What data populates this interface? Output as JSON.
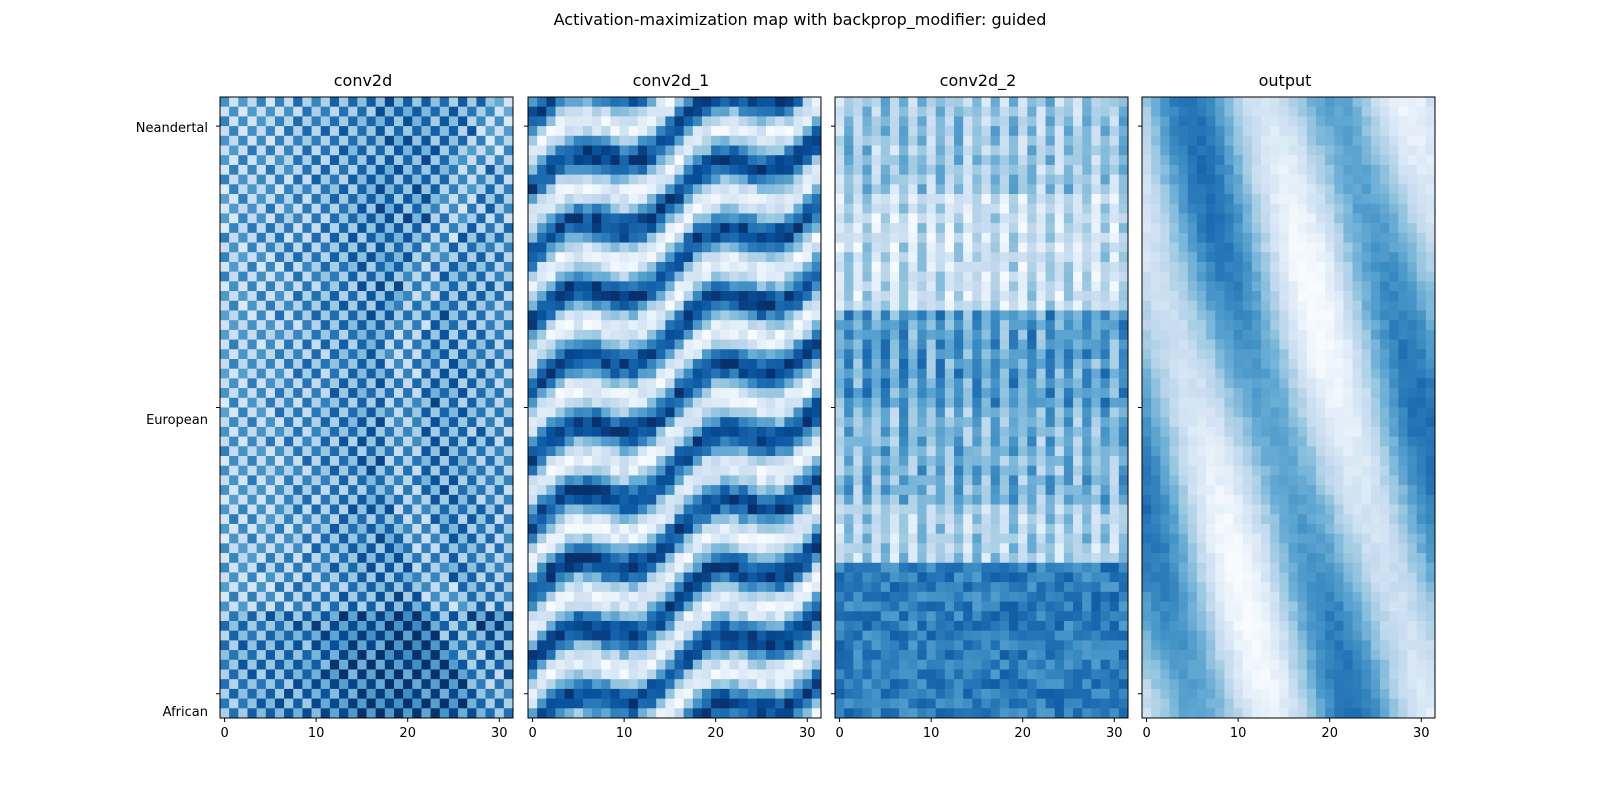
{
  "figure": {
    "title": "Activation-maximization map with backprop_modifier: guided",
    "colormap": "Blues"
  },
  "chart_data": {
    "type": "heatmap",
    "title": "Activation-maximization map with backprop_modifier: guided",
    "x_range": [
      0,
      31
    ],
    "x_ticks": [
      0,
      10,
      20,
      30
    ],
    "y_categories": [
      "Neandertal",
      "European",
      "African"
    ],
    "grid_size": {
      "cols": 32,
      "rows": 64
    },
    "colormap": "Blues",
    "panels": [
      {
        "title": "conv2d",
        "pattern": "checkerboard with dark central column band and curved light arcs"
      },
      {
        "title": "conv2d_1",
        "pattern": "wavy diagonal stripes"
      },
      {
        "title": "conv2d_2",
        "pattern": "horizontal bands, light upper, dark middle and lower"
      },
      {
        "title": "output",
        "pattern": "smooth diagonal light and dark streaks"
      }
    ]
  }
}
